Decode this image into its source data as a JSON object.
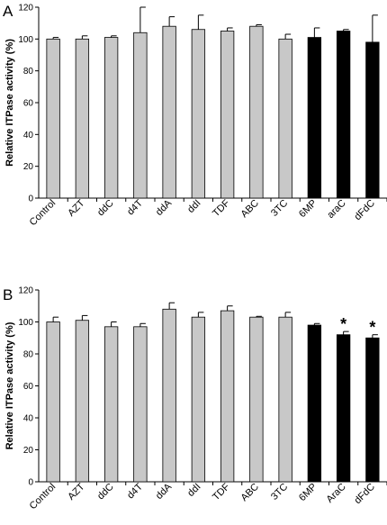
{
  "chart_data": [
    {
      "type": "bar",
      "panel_label": "A",
      "ylabel": "Relative ITPase activity (%)",
      "xlabel": "",
      "ylim": [
        0,
        120
      ],
      "yticks": [
        "0",
        "20",
        "40",
        "60",
        "80",
        "100",
        "120"
      ],
      "grid": false,
      "categories": [
        "Control",
        "AZT",
        "ddC",
        "d4T",
        "ddA",
        "ddI",
        "TDF",
        "ABC",
        "3TC",
        "6MP",
        "araC",
        "dFdC"
      ],
      "values": [
        100,
        100,
        101,
        104,
        108,
        106,
        105,
        108,
        100,
        101,
        105,
        98
      ],
      "errors": [
        1,
        2,
        1,
        16,
        6,
        9,
        2,
        1,
        3,
        6,
        1,
        17
      ],
      "bar_colors": [
        "#c8c8c8",
        "#c8c8c8",
        "#c8c8c8",
        "#c8c8c8",
        "#c8c8c8",
        "#c8c8c8",
        "#c8c8c8",
        "#c8c8c8",
        "#c8c8c8",
        "#000000",
        "#000000",
        "#000000"
      ],
      "annotations": [
        "",
        "",
        "",
        "",
        "",
        "",
        "",
        "",
        "",
        "",
        "",
        ""
      ]
    },
    {
      "type": "bar",
      "panel_label": "B",
      "ylabel": "Relative ITPase activity (%)",
      "xlabel": "",
      "ylim": [
        0,
        120
      ],
      "yticks": [
        "0",
        "20",
        "40",
        "60",
        "80",
        "100",
        "120"
      ],
      "grid": false,
      "categories": [
        "Control",
        "AZT",
        "ddC",
        "d4T",
        "ddA",
        "ddI",
        "TDF",
        "ABC",
        "3TC",
        "6MP",
        "AraC",
        "dFdC"
      ],
      "values": [
        100,
        101,
        97,
        97,
        108,
        103,
        107,
        103,
        103,
        98,
        92,
        90
      ],
      "errors": [
        3,
        3,
        3,
        2,
        4,
        3,
        3,
        0.5,
        3,
        1,
        2,
        2
      ],
      "bar_colors": [
        "#c8c8c8",
        "#c8c8c8",
        "#c8c8c8",
        "#c8c8c8",
        "#c8c8c8",
        "#c8c8c8",
        "#c8c8c8",
        "#c8c8c8",
        "#c8c8c8",
        "#000000",
        "#000000",
        "#000000"
      ],
      "annotations": [
        "",
        "",
        "",
        "",
        "",
        "",
        "",
        "",
        "",
        "",
        "*",
        "*"
      ]
    }
  ]
}
